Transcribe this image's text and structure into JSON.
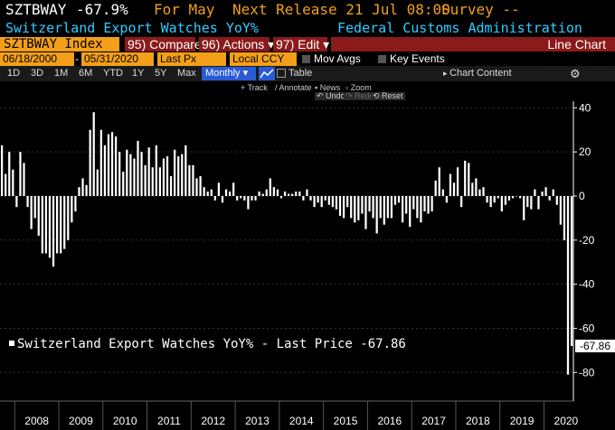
{
  "header": {
    "ticker": "SZTBWAY",
    "change": "-67.9%",
    "period": "For May",
    "next_release": "Next Release 21 Jul 08:00",
    "survey": "Survey --",
    "security_name": "Switzerland Export Watches YoY%",
    "source": "Federal Customs Administration"
  },
  "toolbar": {
    "index_field": "SZTBWAY Index",
    "compare": "95) Compare",
    "actions": "96) Actions ▾",
    "edit": "97) Edit ▾",
    "chart_type": "Line Chart"
  },
  "range_bar": {
    "start_date": "06/18/2000",
    "end_date": "05/31/2020",
    "field": "Last Px",
    "currency": "Local CCY",
    "mov_avgs": "Mov Avgs",
    "key_events": "Key Events"
  },
  "timeframes": [
    "1D",
    "3D",
    "1M",
    "6M",
    "YTD",
    "1Y",
    "5Y",
    "Max"
  ],
  "frequency": "Monthly ▾",
  "table_label": "Table",
  "chart_content": "Chart Content",
  "tools": {
    "track": "Track",
    "annotate": "Annotate",
    "news": "News",
    "zoom": "Zoom",
    "undo": "Undo",
    "redo": "Redo",
    "reset": "Reset"
  },
  "legend_label": "Switzerland Export Watches YoY% - Last Price -67.86",
  "last_value_label": "-67.86",
  "colors": {
    "accent": "#f39f18",
    "bar": "#ffffff",
    "background": "#000000",
    "source_text": "#33ccff"
  },
  "chart_data": {
    "type": "bar",
    "title": "",
    "xlabel": "",
    "ylabel": "",
    "ylim": [
      -93,
      43
    ],
    "yticks": [
      40,
      20,
      0,
      -20,
      -40,
      -60,
      -80
    ],
    "x_tick_labels": [
      "2008",
      "2009",
      "2010",
      "2011",
      "2012",
      "2013",
      "2014",
      "2015",
      "2016",
      "2017",
      "2018",
      "2019",
      "2020"
    ],
    "x_start": "2007-09",
    "x_end": "2020-05",
    "series": [
      {
        "values": [
          23,
          10,
          20,
          12,
          -5,
          20,
          15,
          -5,
          -15,
          -10,
          -18,
          -26,
          -26,
          -28,
          -32,
          -26,
          -26,
          -24,
          -20,
          -12,
          -7,
          4,
          8,
          5,
          30,
          38,
          12,
          30,
          23,
          28,
          29,
          27,
          20,
          11,
          21,
          19,
          17,
          25,
          20,
          14,
          22,
          13,
          23,
          13,
          17,
          18,
          9,
          21,
          18,
          19,
          23,
          14,
          14,
          8,
          9,
          4,
          2,
          3,
          -2,
          6,
          -3,
          3,
          2,
          6,
          -2,
          -1,
          -2,
          -6,
          -2,
          -2,
          2,
          1,
          3,
          8,
          4,
          3,
          -1,
          2,
          1,
          1,
          2,
          2,
          -2,
          3,
          -2,
          -5,
          -3,
          -5,
          -2,
          -4,
          -5,
          -6,
          -9,
          -10,
          -5,
          -10,
          -12,
          -11,
          -8,
          -15,
          -7,
          -10,
          -17,
          -10,
          -13,
          -10,
          -10,
          -4,
          -3,
          -12,
          -8,
          -14,
          -6,
          -10,
          -12,
          -7,
          -8,
          -7,
          7,
          13,
          3,
          -3,
          10,
          6,
          13,
          -5,
          16,
          15,
          6,
          8,
          3,
          4,
          -3,
          -5,
          -3,
          -1,
          -7,
          -4,
          -2,
          -1,
          0,
          -1,
          -11,
          -5,
          -6,
          3,
          -6,
          2,
          4,
          -2,
          3,
          -4,
          -13,
          -20,
          -81,
          -68
        ]
      }
    ],
    "last_price": -67.86
  }
}
